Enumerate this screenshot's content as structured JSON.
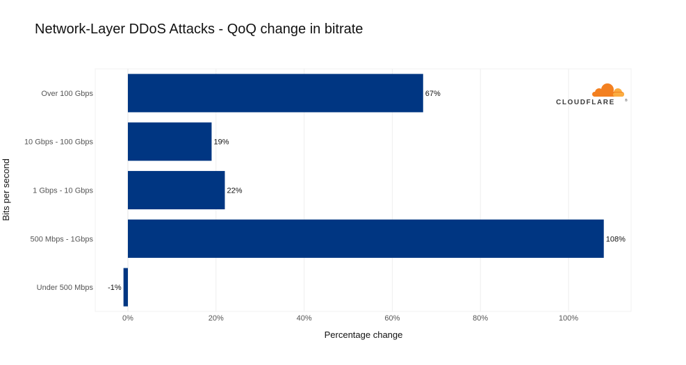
{
  "chart_data": {
    "type": "bar",
    "orientation": "horizontal",
    "title": "Network-Layer DDoS Attacks - QoQ change in bitrate",
    "xlabel": "Percentage change",
    "ylabel": "Bits per second",
    "categories": [
      "Over 100 Gbps",
      "10 Gbps - 100 Gbps",
      "1 Gbps - 10 Gbps",
      "500 Mbps - 1Gbps",
      "Under 500 Mbps"
    ],
    "values": [
      67,
      19,
      22,
      108,
      -1
    ],
    "data_labels": [
      "67%",
      "19%",
      "22%",
      "108%",
      "-1%"
    ],
    "xlim": [
      -6,
      114
    ],
    "xticks": [
      0,
      20,
      40,
      60,
      80,
      100
    ],
    "xtick_labels": [
      "0%",
      "20%",
      "40%",
      "60%",
      "80%",
      "100%"
    ],
    "grid": true,
    "bar_color": "#003682",
    "legend": "none"
  },
  "logo": {
    "text": "CLOUDFLARE",
    "trademark": "®",
    "color": "#f38020"
  }
}
